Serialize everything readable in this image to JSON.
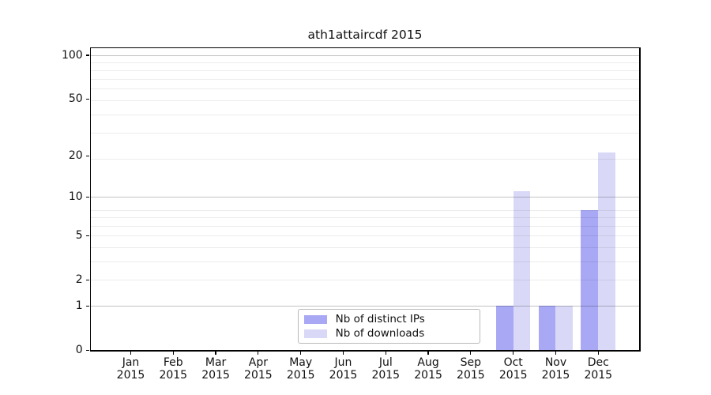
{
  "title": "ath1attaircdf 2015",
  "chart_data": {
    "type": "bar",
    "title": "ath1attaircdf 2015",
    "categories": [
      "Jan",
      "Feb",
      "Mar",
      "Apr",
      "May",
      "Jun",
      "Jul",
      "Aug",
      "Sep",
      "Oct",
      "Nov",
      "Dec"
    ],
    "x_year_label": "2015",
    "series": [
      {
        "name": "Nb of distinct IPs",
        "color": "#a8a8f5",
        "values": [
          0,
          0,
          0,
          0,
          0,
          0,
          0,
          0,
          0,
          1,
          1,
          8
        ]
      },
      {
        "name": "Nb of downloads",
        "color": "#d9d9f7",
        "values": [
          0,
          0,
          0,
          0,
          0,
          0,
          0,
          0,
          0,
          11,
          1,
          21
        ]
      }
    ],
    "xlabel": "",
    "ylabel": "",
    "y_scale": "log10(value+1)",
    "ylim": [
      0,
      112
    ],
    "y_ticks": [
      0,
      1,
      2,
      5,
      10,
      20,
      50,
      100
    ],
    "major_gridline_values": [
      1,
      10,
      100
    ],
    "minor_gridline_values": [
      2,
      3,
      4,
      5,
      6,
      7,
      8,
      19,
      29,
      39,
      49,
      59,
      69,
      79,
      89
    ],
    "grid": true,
    "legend_position": "lower center",
    "grid_major_color": "#c3c3c3",
    "grid_minor_color": "#ececec",
    "spine_color": "#000000"
  }
}
